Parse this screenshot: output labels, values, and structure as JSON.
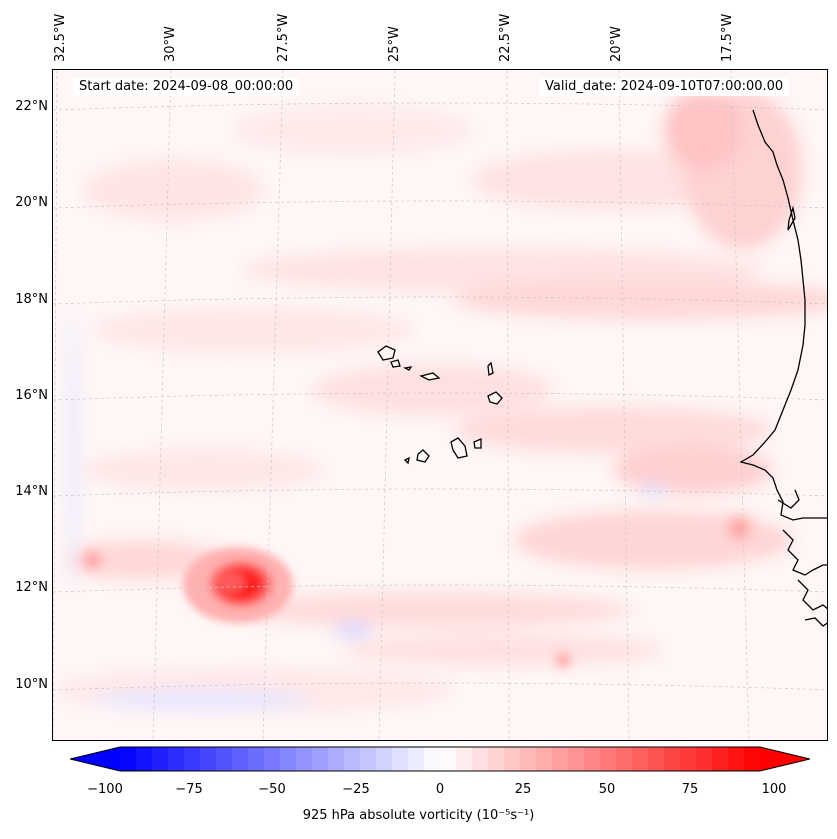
{
  "map": {
    "start_date_label": "Start date: 2024-09-08_00:00:00",
    "valid_date_label": "Valid_date: 2024-09-10T07:00:00.00",
    "longitude_labels": [
      "32.5°W",
      "30°W",
      "27.5°W",
      "25°W",
      "22.5°W",
      "20°W",
      "17.5°W"
    ],
    "latitude_labels": [
      "22°N",
      "20°N",
      "18°N",
      "16°N",
      "14°N",
      "12°N",
      "10°N"
    ],
    "lon_range_deg": [
      -32.5,
      -15
    ],
    "lat_range_deg": [
      9,
      22.8
    ],
    "features": [
      "Cabo Verde islands",
      "West African coastline",
      "vorticity maximum near 12°N 28.5°W"
    ]
  },
  "colorbar": {
    "title": "925 hPa absolute vorticity (10⁻⁵s⁻¹)",
    "tick_labels": [
      "−100",
      "−75",
      "−50",
      "−25",
      "0",
      "25",
      "50",
      "75",
      "100"
    ],
    "range": [
      -100,
      100
    ],
    "colormap": "bwr",
    "color_min": "#0000ff",
    "color_mid": "#ffffff",
    "color_max": "#ff0000"
  }
}
